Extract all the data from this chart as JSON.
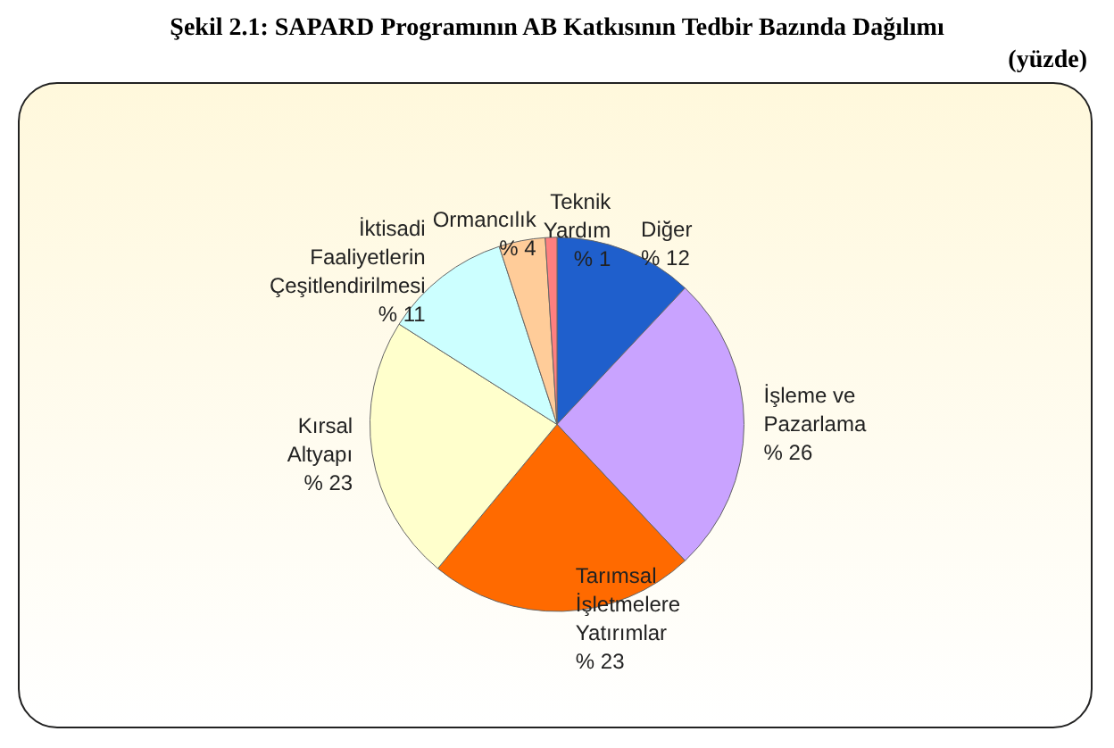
{
  "chart_data": {
    "type": "pie",
    "title": "Şekil 2.1: SAPARD Programının AB Katkısının Tedbir Bazında Dağılımı",
    "subtitle": "(yüzde)",
    "categories": [
      "Diğer",
      "İşleme ve\nPazarlama",
      "Tarımsal\nİşletmelere\nYatırımlar",
      "Kırsal\nAltyapı",
      "İktisadi\nFaaliyetlerin\nÇeşitlendirilmesi",
      "Ormancılık",
      "Teknik\nYardım"
    ],
    "values": [
      12,
      26,
      23,
      23,
      11,
      4,
      1
    ],
    "value_labels": [
      "% 12",
      "% 26",
      "% 23",
      "% 23",
      "% 11",
      "% 4",
      "% 1"
    ],
    "colors": [
      "#1f5fcc",
      "#c9a3ff",
      "#ff6a00",
      "#ffffcc",
      "#ccffff",
      "#ffcc99",
      "#ff7f7f"
    ],
    "legend": false
  }
}
